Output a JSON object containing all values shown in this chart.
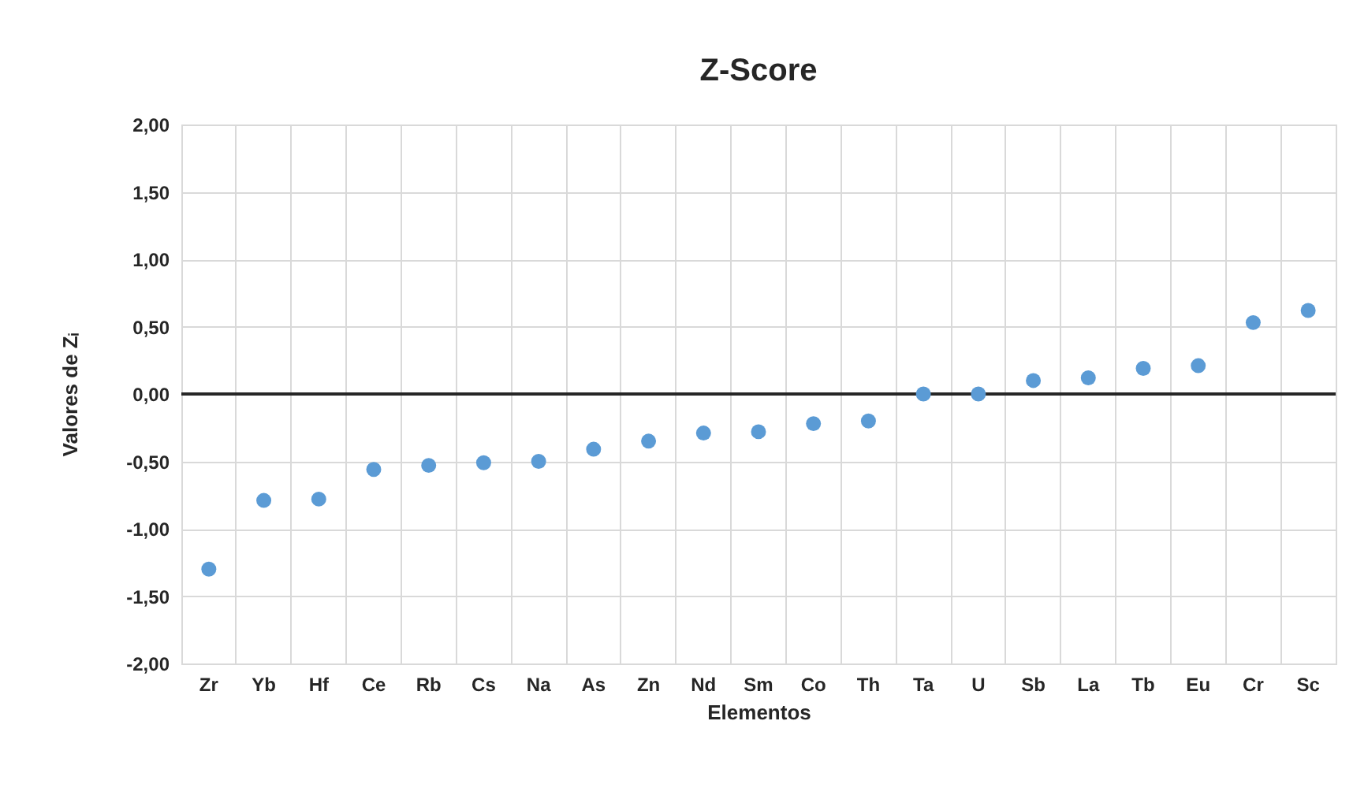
{
  "chart_data": {
    "type": "scatter",
    "title": "Z-Score",
    "xlabel": "Elementos",
    "ylabel": "Valores de Zᵢ",
    "categories": [
      "Zr",
      "Yb",
      "Hf",
      "Ce",
      "Rb",
      "Cs",
      "Na",
      "As",
      "Zn",
      "Nd",
      "Sm",
      "Co",
      "Th",
      "Ta",
      "U",
      "Sb",
      "La",
      "Tb",
      "Eu",
      "Cr",
      "Sc"
    ],
    "series": [
      {
        "color": "#5b9bd5",
        "values": [
          -1.3,
          -0.79,
          -0.78,
          -0.56,
          -0.53,
          -0.51,
          -0.5,
          -0.41,
          -0.35,
          -0.29,
          -0.28,
          -0.22,
          -0.2,
          0.0,
          0.0,
          0.1,
          0.12,
          0.19,
          0.21,
          0.53,
          0.62
        ]
      }
    ],
    "ylim": [
      -2,
      2
    ],
    "yticks": [
      {
        "value": -2,
        "label": "-2,00"
      },
      {
        "value": -1.5,
        "label": "-1,50"
      },
      {
        "value": -1,
        "label": "-1,00"
      },
      {
        "value": -0.5,
        "label": "-0,50"
      },
      {
        "value": 0,
        "label": "0,00"
      },
      {
        "value": 0.5,
        "label": "0,50"
      },
      {
        "value": 1,
        "label": "1,00"
      },
      {
        "value": 1.5,
        "label": "1,50"
      },
      {
        "value": 2,
        "label": "2,00"
      }
    ],
    "ref_lines": [
      {
        "axis": "y",
        "value": 0,
        "color": "#262626"
      }
    ],
    "grid": true,
    "marker": "circle"
  }
}
